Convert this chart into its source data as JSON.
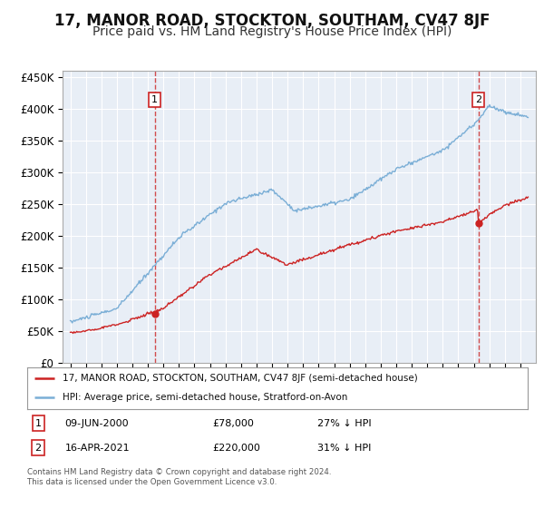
{
  "title": "17, MANOR ROAD, STOCKTON, SOUTHAM, CV47 8JF",
  "subtitle": "Price paid vs. HM Land Registry's House Price Index (HPI)",
  "title_fontsize": 12,
  "subtitle_fontsize": 10,
  "hpi_color": "#7aaed6",
  "price_color": "#cc2222",
  "background_color": "#e8eef6",
  "grid_color": "#ffffff",
  "sale1": {
    "date_num": 2000.44,
    "price": 78000,
    "label": "1",
    "text": "09-JUN-2000",
    "amount": "£78,000",
    "note": "27% ↓ HPI"
  },
  "sale2": {
    "date_num": 2021.29,
    "price": 220000,
    "label": "2",
    "text": "16-APR-2021",
    "amount": "£220,000",
    "note": "31% ↓ HPI"
  },
  "xmin": 1994.5,
  "xmax": 2025.0,
  "ymin": 0,
  "ymax": 460000,
  "yticks": [
    0,
    50000,
    100000,
    150000,
    200000,
    250000,
    300000,
    350000,
    400000,
    450000
  ],
  "ytick_labels": [
    "£0",
    "£50K",
    "£100K",
    "£150K",
    "£200K",
    "£250K",
    "£300K",
    "£350K",
    "£400K",
    "£450K"
  ],
  "xticks": [
    1995,
    1996,
    1997,
    1998,
    1999,
    2000,
    2001,
    2002,
    2003,
    2004,
    2005,
    2006,
    2007,
    2008,
    2009,
    2010,
    2011,
    2012,
    2013,
    2014,
    2015,
    2016,
    2017,
    2018,
    2019,
    2020,
    2021,
    2022,
    2023,
    2024
  ],
  "legend_line1": "17, MANOR ROAD, STOCKTON, SOUTHAM, CV47 8JF (semi-detached house)",
  "legend_line2": "HPI: Average price, semi-detached house, Stratford-on-Avon",
  "footer": "Contains HM Land Registry data © Crown copyright and database right 2024.\nThis data is licensed under the Open Government Licence v3.0."
}
